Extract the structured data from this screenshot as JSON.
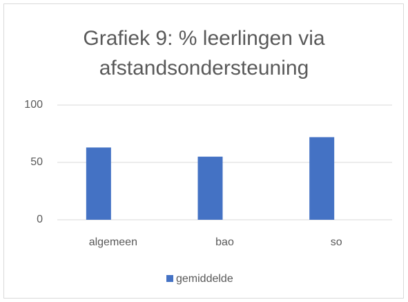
{
  "chart_data": {
    "type": "bar",
    "title": "Grafiek 9: % leerlingen via afstandsondersteuning",
    "categories": [
      "algemeen",
      "bao",
      "so"
    ],
    "series": [
      {
        "name": "gemiddelde",
        "color": "#4472c4",
        "values": [
          63,
          55,
          72
        ]
      }
    ],
    "ylim": [
      0,
      100
    ],
    "yticks": [
      0,
      50,
      100
    ],
    "grid": true,
    "legend": "bottom"
  }
}
